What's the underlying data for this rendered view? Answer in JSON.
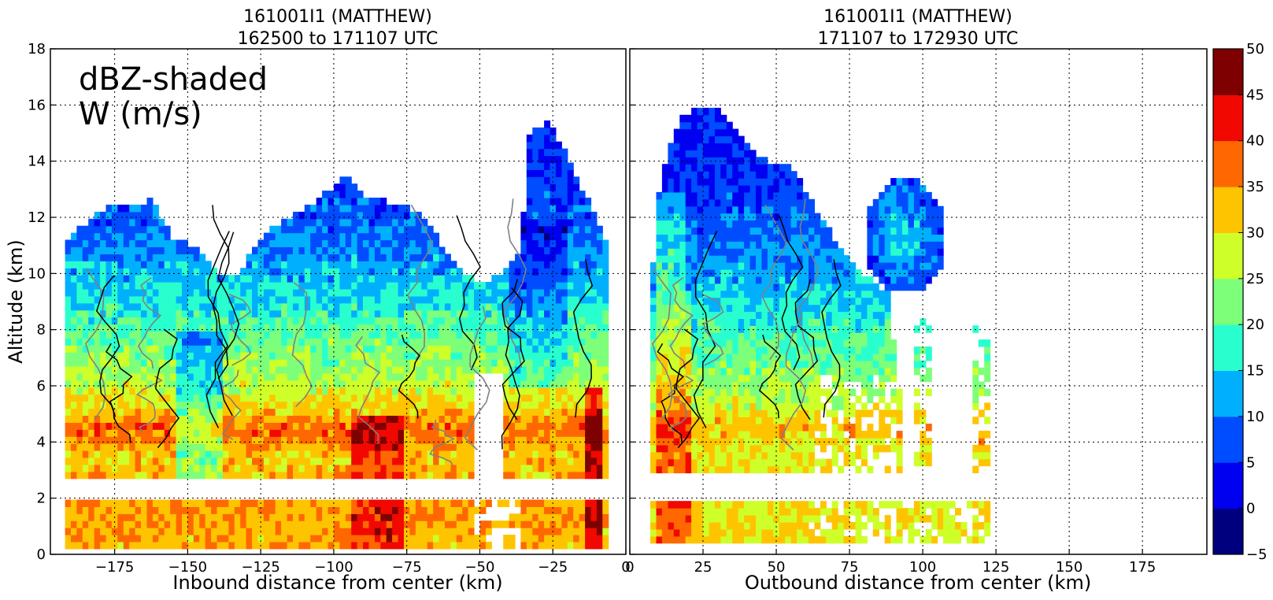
{
  "figure": {
    "annotation": {
      "line1": "dBZ-shaded",
      "line2": "W (m/s)"
    },
    "ylabel": "Altitude (km)"
  },
  "chart_data": [
    {
      "type": "heatmap",
      "panel": "inbound",
      "title_line1": "161001I1 (MATTHEW)",
      "title_line2": "162500 to 171107 UTC",
      "xlabel": "Inbound distance from center (km)",
      "ylabel": "Altitude (km)",
      "xlim": [
        -197,
        0
      ],
      "ylim": [
        0,
        18
      ],
      "xticks": [
        -175,
        -150,
        -125,
        -100,
        -75,
        -50,
        -25,
        0
      ],
      "xtick_labels": [
        "−175",
        "−150",
        "−125",
        "−100",
        "−75",
        "−50",
        "−25",
        "0"
      ],
      "yticks": [
        0,
        2,
        4,
        6,
        8,
        10,
        12,
        14,
        16,
        18
      ],
      "ytick_labels": [
        "0",
        "2",
        "4",
        "6",
        "8",
        "10",
        "12",
        "14",
        "16",
        "18"
      ],
      "grid": true,
      "data_gap_altitude_km": [
        1.9,
        2.8
      ],
      "echo_top_km": [
        [
          -191,
          11.3
        ],
        [
          -185,
          11.8
        ],
        [
          -178,
          12.4
        ],
        [
          -170,
          12.5
        ],
        [
          -162,
          12.6
        ],
        [
          -155,
          11.2
        ],
        [
          -148,
          11.0
        ],
        [
          -140,
          10.0
        ],
        [
          -134,
          9.8
        ],
        [
          -128,
          10.8
        ],
        [
          -122,
          11.6
        ],
        [
          -115,
          12.0
        ],
        [
          -108,
          12.5
        ],
        [
          -100,
          13.1
        ],
        [
          -96,
          13.7
        ],
        [
          -90,
          12.8
        ],
        [
          -82,
          12.6
        ],
        [
          -74,
          12.4
        ],
        [
          -66,
          11.6
        ],
        [
          -58,
          10.2
        ],
        [
          -50,
          9.7
        ],
        [
          -42,
          10.0
        ],
        [
          -36,
          10.8
        ],
        [
          -33,
          15.0
        ],
        [
          -27,
          15.4
        ],
        [
          -22,
          14.6
        ],
        [
          -16,
          13.2
        ],
        [
          -10,
          12.0
        ],
        [
          -7,
          11.2
        ]
      ],
      "echo_bottom_km": 0.2,
      "dbz_profile": {
        "altitude_km": [
          0,
          1,
          1.9,
          2.8,
          3.5,
          4.5,
          5.2,
          6,
          7,
          8,
          9,
          10,
          11,
          12,
          13,
          14,
          15
        ],
        "dbz": [
          33,
          34,
          34,
          33,
          32,
          38,
          31,
          27,
          23,
          20,
          16,
          13,
          10,
          8,
          6,
          5,
          4
        ]
      },
      "w_contours_m_s": [
        1,
        -1
      ]
    },
    {
      "type": "heatmap",
      "panel": "outbound",
      "title_line1": "161001I1 (MATTHEW)",
      "title_line2": "171107 to 172930 UTC",
      "xlabel": "Outbound distance from center (km)",
      "xlim": [
        0,
        197
      ],
      "ylim": [
        0,
        18
      ],
      "xticks": [
        0,
        25,
        50,
        75,
        100,
        125,
        150,
        175
      ],
      "xtick_labels": [
        "0",
        "25",
        "50",
        "75",
        "100",
        "125",
        "150",
        "175"
      ],
      "grid": true,
      "data_gap_altitude_km": [
        1.9,
        2.8
      ],
      "echo_top_km": [
        [
          8,
          10.5
        ],
        [
          10,
          13.0
        ],
        [
          14,
          14.6
        ],
        [
          18,
          15.6
        ],
        [
          24,
          16.0
        ],
        [
          30,
          15.8
        ],
        [
          36,
          15.2
        ],
        [
          42,
          14.4
        ],
        [
          48,
          14.0
        ],
        [
          54,
          13.9
        ],
        [
          60,
          13.0
        ],
        [
          66,
          11.8
        ],
        [
          72,
          11.0
        ],
        [
          80,
          10.0
        ],
        [
          88,
          9.3
        ],
        [
          92,
          6.2
        ]
      ],
      "upper_echo_cell": {
        "x_km": [
          80,
          108
        ],
        "altitude_km": [
          9.3,
          13.3
        ]
      },
      "echo_bottom_km": 0.4,
      "dbz_profile": {
        "altitude_km": [
          0,
          1,
          1.9,
          2.8,
          3.5,
          4.5,
          5.2,
          6,
          7,
          8,
          9,
          10,
          11,
          12,
          13,
          14,
          15
        ],
        "dbz": [
          30,
          30,
          30,
          30,
          29,
          33,
          28,
          24,
          21,
          18,
          15,
          12,
          10,
          8,
          6,
          5,
          4
        ]
      },
      "w_contours_m_s": [
        1,
        -1,
        5
      ]
    }
  ],
  "colorbar": {
    "levels": [
      -5,
      0,
      5,
      10,
      15,
      20,
      25,
      30,
      35,
      40,
      45,
      50
    ],
    "labels": [
      "−5",
      "0",
      "5",
      "10",
      "15",
      "20",
      "25",
      "30",
      "35",
      "40",
      "45",
      "50"
    ],
    "colors": [
      "#00007f",
      "#0000f1",
      "#004cff",
      "#00b0ff",
      "#29ffce",
      "#7dff7a",
      "#ceff29",
      "#ffc400",
      "#ff6800",
      "#f10800",
      "#7f0000"
    ]
  }
}
